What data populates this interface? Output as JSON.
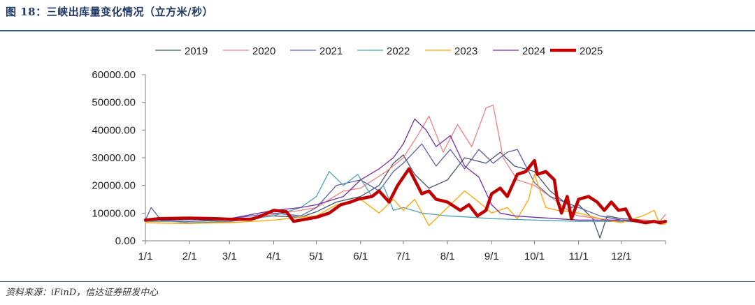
{
  "header": {
    "title": "图 18：三峡出库量变化情况（立方米/秒）"
  },
  "footer": {
    "source": "资料来源：iFinD，信达证券研发中心"
  },
  "chart_data": {
    "type": "line",
    "title": "图 18：三峡出库量变化情况（立方米/秒）",
    "xlabel": "",
    "ylabel": "",
    "x_ticks": [
      "1/1",
      "2/1",
      "3/1",
      "4/1",
      "5/1",
      "6/1",
      "7/1",
      "8/1",
      "9/1",
      "10/1",
      "11/1",
      "12/1"
    ],
    "x_tick_days": [
      1,
      32,
      60,
      91,
      121,
      152,
      182,
      213,
      244,
      274,
      305,
      335
    ],
    "xlim": [
      1,
      366
    ],
    "y_ticks": [
      "0.00",
      "10000.00",
      "20000.00",
      "30000.00",
      "40000.00",
      "50000.00",
      "60000.00"
    ],
    "ylim": [
      0,
      60000
    ],
    "legend_position": "top",
    "grid": false,
    "series": [
      {
        "name": "2019",
        "color": "#44546a",
        "width": 1.3,
        "points": [
          [
            1,
            7000
          ],
          [
            15,
            7200
          ],
          [
            32,
            7000
          ],
          [
            60,
            7500
          ],
          [
            91,
            9000
          ],
          [
            110,
            8500
          ],
          [
            121,
            10500
          ],
          [
            135,
            14000
          ],
          [
            152,
            16000
          ],
          [
            165,
            20000
          ],
          [
            175,
            28000
          ],
          [
            182,
            31000
          ],
          [
            190,
            24000
          ],
          [
            200,
            19000
          ],
          [
            213,
            22000
          ],
          [
            225,
            30000
          ],
          [
            240,
            28000
          ],
          [
            250,
            32000
          ],
          [
            260,
            27000
          ],
          [
            274,
            25000
          ],
          [
            285,
            18000
          ],
          [
            300,
            12000
          ],
          [
            305,
            13000
          ],
          [
            315,
            8000
          ],
          [
            320,
            1000
          ],
          [
            325,
            9000
          ],
          [
            335,
            8000
          ],
          [
            350,
            7500
          ],
          [
            366,
            7000
          ]
        ]
      },
      {
        "name": "2020",
        "color": "#f08080",
        "width": 1.3,
        "points": [
          [
            1,
            6500
          ],
          [
            32,
            6200
          ],
          [
            60,
            6800
          ],
          [
            91,
            9500
          ],
          [
            110,
            11000
          ],
          [
            121,
            12000
          ],
          [
            140,
            18000
          ],
          [
            152,
            19000
          ],
          [
            170,
            25000
          ],
          [
            182,
            30000
          ],
          [
            192,
            38000
          ],
          [
            200,
            45000
          ],
          [
            210,
            32000
          ],
          [
            220,
            42000
          ],
          [
            230,
            34000
          ],
          [
            240,
            48000
          ],
          [
            245,
            49000
          ],
          [
            252,
            30000
          ],
          [
            262,
            22000
          ],
          [
            274,
            20000
          ],
          [
            285,
            16000
          ],
          [
            300,
            10000
          ],
          [
            305,
            9000
          ],
          [
            320,
            8000
          ],
          [
            335,
            7000
          ],
          [
            350,
            7500
          ],
          [
            362,
            7000
          ],
          [
            366,
            9500
          ]
        ]
      },
      {
        "name": "2021",
        "color": "#5b5ea6",
        "width": 1.3,
        "points": [
          [
            1,
            7500
          ],
          [
            5,
            12000
          ],
          [
            12,
            7500
          ],
          [
            32,
            7000
          ],
          [
            60,
            8000
          ],
          [
            91,
            10000
          ],
          [
            110,
            9000
          ],
          [
            121,
            12000
          ],
          [
            135,
            20000
          ],
          [
            152,
            22000
          ],
          [
            165,
            18000
          ],
          [
            175,
            25000
          ],
          [
            182,
            28000
          ],
          [
            195,
            35000
          ],
          [
            205,
            27000
          ],
          [
            215,
            33000
          ],
          [
            225,
            26000
          ],
          [
            235,
            33000
          ],
          [
            245,
            28000
          ],
          [
            255,
            32000
          ],
          [
            262,
            33000
          ],
          [
            274,
            21000
          ],
          [
            285,
            16000
          ],
          [
            300,
            13000
          ],
          [
            305,
            12000
          ],
          [
            320,
            9000
          ],
          [
            335,
            7500
          ],
          [
            350,
            7000
          ],
          [
            366,
            7000
          ]
        ]
      },
      {
        "name": "2022",
        "color": "#4ea0b5",
        "width": 1.3,
        "points": [
          [
            1,
            7000
          ],
          [
            20,
            7000
          ],
          [
            32,
            6500
          ],
          [
            60,
            7000
          ],
          [
            91,
            9000
          ],
          [
            110,
            12000
          ],
          [
            121,
            16000
          ],
          [
            130,
            25000
          ],
          [
            140,
            20000
          ],
          [
            150,
            24000
          ],
          [
            160,
            16000
          ],
          [
            168,
            20000
          ],
          [
            175,
            11000
          ],
          [
            182,
            12000
          ],
          [
            195,
            10000
          ],
          [
            213,
            9000
          ],
          [
            230,
            8500
          ],
          [
            244,
            8000
          ],
          [
            274,
            7500
          ],
          [
            305,
            7000
          ],
          [
            335,
            7000
          ],
          [
            366,
            6500
          ]
        ]
      },
      {
        "name": "2023",
        "color": "#ffa500",
        "width": 1.3,
        "points": [
          [
            1,
            6500
          ],
          [
            32,
            6300
          ],
          [
            60,
            6500
          ],
          [
            91,
            7500
          ],
          [
            110,
            8500
          ],
          [
            121,
            9000
          ],
          [
            135,
            13000
          ],
          [
            152,
            15000
          ],
          [
            165,
            10000
          ],
          [
            175,
            15000
          ],
          [
            182,
            11000
          ],
          [
            190,
            15000
          ],
          [
            200,
            5500
          ],
          [
            213,
            12000
          ],
          [
            225,
            18000
          ],
          [
            235,
            14000
          ],
          [
            244,
            10000
          ],
          [
            255,
            12000
          ],
          [
            262,
            8000
          ],
          [
            270,
            15000
          ],
          [
            274,
            24000
          ],
          [
            282,
            12000
          ],
          [
            290,
            11000
          ],
          [
            305,
            10000
          ],
          [
            320,
            8000
          ],
          [
            335,
            6500
          ],
          [
            350,
            9000
          ],
          [
            358,
            11000
          ],
          [
            362,
            6000
          ],
          [
            366,
            6000
          ]
        ]
      },
      {
        "name": "2024",
        "color": "#7030a0",
        "width": 1.3,
        "points": [
          [
            1,
            7500
          ],
          [
            32,
            7800
          ],
          [
            60,
            8000
          ],
          [
            91,
            11000
          ],
          [
            110,
            12000
          ],
          [
            121,
            13000
          ],
          [
            140,
            16000
          ],
          [
            152,
            22000
          ],
          [
            165,
            26000
          ],
          [
            175,
            30000
          ],
          [
            182,
            35000
          ],
          [
            190,
            44000
          ],
          [
            198,
            40000
          ],
          [
            205,
            34000
          ],
          [
            215,
            38000
          ],
          [
            225,
            27000
          ],
          [
            235,
            23000
          ],
          [
            244,
            13000
          ],
          [
            250,
            10000
          ],
          [
            260,
            9000
          ],
          [
            274,
            8500
          ],
          [
            290,
            8000
          ],
          [
            305,
            7500
          ],
          [
            320,
            7500
          ],
          [
            335,
            7500
          ],
          [
            350,
            7000
          ],
          [
            366,
            7000
          ]
        ]
      },
      {
        "name": "2025",
        "color": "#c00000",
        "width": 4.5,
        "points": [
          [
            1,
            7500
          ],
          [
            10,
            8000
          ],
          [
            32,
            8200
          ],
          [
            50,
            8000
          ],
          [
            60,
            7800
          ],
          [
            75,
            7800
          ],
          [
            80,
            8500
          ],
          [
            91,
            11000
          ],
          [
            100,
            10500
          ],
          [
            105,
            7000
          ],
          [
            121,
            8500
          ],
          [
            130,
            10000
          ],
          [
            138,
            13000
          ],
          [
            145,
            14000
          ],
          [
            150,
            15000
          ],
          [
            160,
            16000
          ],
          [
            165,
            18000
          ],
          [
            172,
            14000
          ],
          [
            178,
            20000
          ],
          [
            182,
            23000
          ],
          [
            186,
            26000
          ],
          [
            190,
            22000
          ],
          [
            195,
            17000
          ],
          [
            200,
            18000
          ],
          [
            205,
            15000
          ],
          [
            213,
            14000
          ],
          [
            222,
            11000
          ],
          [
            228,
            13000
          ],
          [
            234,
            9000
          ],
          [
            240,
            11000
          ],
          [
            244,
            17000
          ],
          [
            250,
            19000
          ],
          [
            255,
            16000
          ],
          [
            262,
            24000
          ],
          [
            268,
            25000
          ],
          [
            274,
            29000
          ],
          [
            276,
            24000
          ],
          [
            282,
            25000
          ],
          [
            288,
            22000
          ],
          [
            290,
            15000
          ],
          [
            293,
            10000
          ],
          [
            297,
            16000
          ],
          [
            300,
            8000
          ],
          [
            305,
            15000
          ],
          [
            312,
            16000
          ],
          [
            318,
            14000
          ],
          [
            323,
            11000
          ],
          [
            328,
            14000
          ],
          [
            333,
            11000
          ],
          [
            338,
            11500
          ],
          [
            342,
            7500
          ],
          [
            347,
            7000
          ],
          [
            352,
            6500
          ],
          [
            358,
            7000
          ],
          [
            362,
            6500
          ],
          [
            366,
            7000
          ]
        ]
      }
    ]
  }
}
